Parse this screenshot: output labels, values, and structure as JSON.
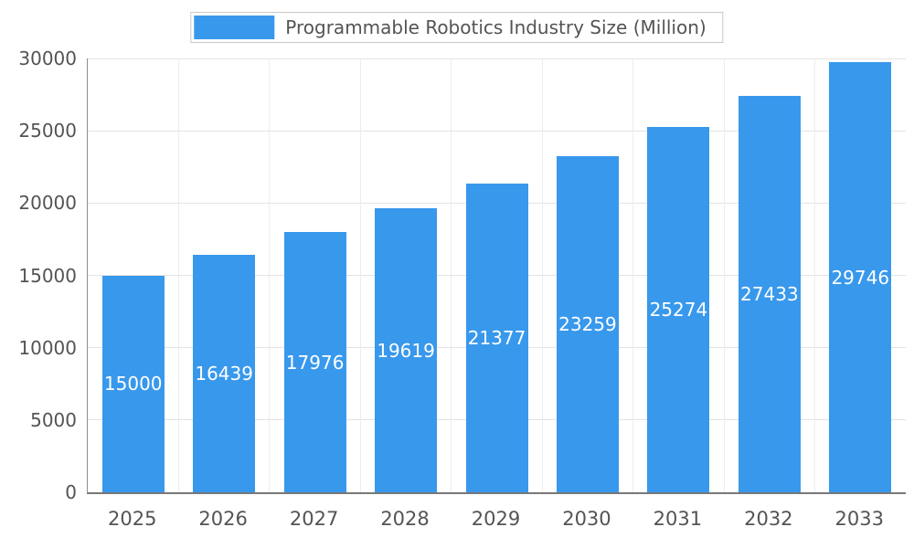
{
  "chart_data": {
    "type": "bar",
    "title": "Programmable Robotics Industry Size (Million)",
    "categories": [
      "2025",
      "2026",
      "2027",
      "2028",
      "2029",
      "2030",
      "2031",
      "2032",
      "2033"
    ],
    "values": [
      15000,
      16439,
      17976,
      19619,
      21377,
      23259,
      25274,
      27433,
      29746
    ],
    "xlabel": "",
    "ylabel": "",
    "ylim": [
      0,
      30000
    ],
    "yticks": [
      0,
      5000,
      10000,
      15000,
      20000,
      25000,
      30000
    ],
    "grid": true,
    "legend_position": "top-center",
    "bar_color": "#3898ec",
    "value_label_color": "#ffffff",
    "value_label_position": "inside-middle"
  }
}
